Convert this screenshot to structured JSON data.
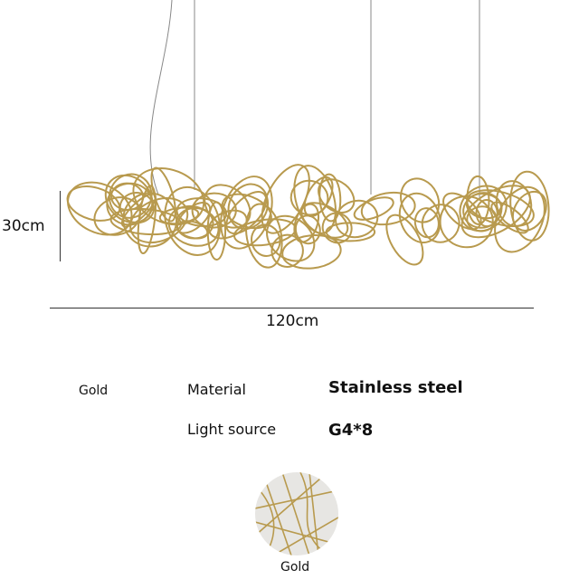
{
  "dimensions": {
    "height": "30cm",
    "width": "120cm"
  },
  "color_label": "Gold",
  "specs": [
    {
      "label": "Material",
      "value": "Stainless steel"
    },
    {
      "label": "Light source",
      "value": "G4*8"
    }
  ],
  "swatch": {
    "label": "Gold",
    "color": "#c9b27a"
  },
  "colors": {
    "wire": "#b89a4e",
    "cable": "#888888"
  }
}
